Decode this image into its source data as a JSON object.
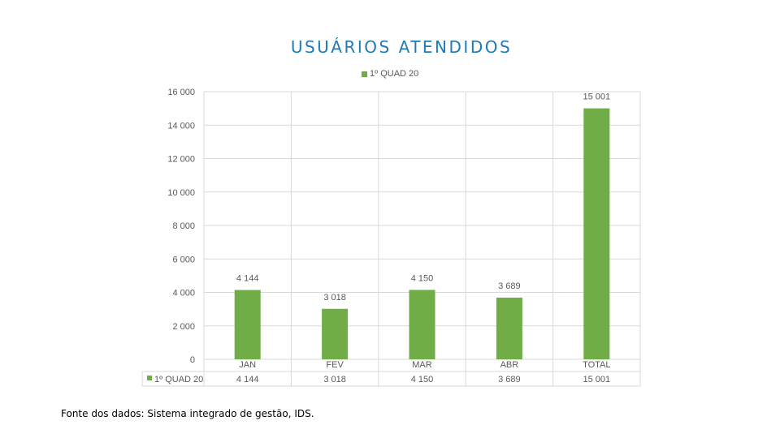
{
  "chart_data": {
    "type": "bar",
    "title": "USUÁRIOS ATENDIDOS",
    "categories": [
      "JAN",
      "FEV",
      "MAR",
      "ABR",
      "TOTAL"
    ],
    "series": [
      {
        "name": "1º QUAD 20",
        "values": [
          4144,
          3018,
          4150,
          3689,
          15001
        ],
        "labels": [
          "4 144",
          "3 018",
          "4 150",
          "3 689",
          "15 001"
        ]
      }
    ],
    "ylim": [
      0,
      16000
    ],
    "yticks": [
      "0",
      "2 000",
      "4 000",
      "6 000",
      "8 000",
      "10 000",
      "12 000",
      "14 000",
      "16 000"
    ],
    "legend_position": "top",
    "data_table": true,
    "grid": true,
    "bar_color": "#70ad47"
  },
  "source_note": "Fonte dos dados: Sistema integrado de gestão, IDS."
}
